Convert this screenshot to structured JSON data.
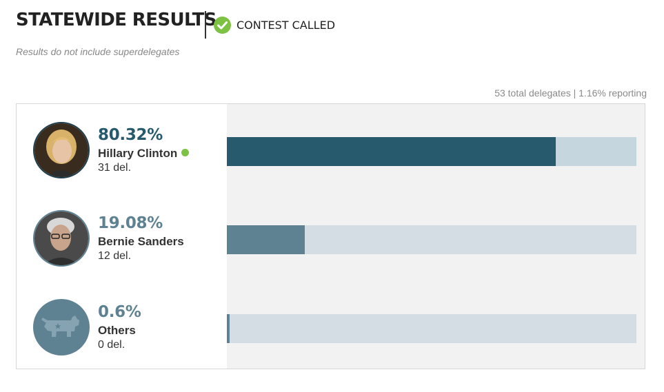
{
  "header": {
    "title": "STATEWIDE RESULTS",
    "status_label": "CONTEST CALLED",
    "status_icon": "check-circle-icon",
    "status_color": "#7dc243",
    "subtitle": "Results do not include superdelegates"
  },
  "summary": "53 total delegates | 1.16% reporting",
  "candidates": [
    {
      "name": "Hillary Clinton",
      "percent_label": "80.32%",
      "delegates_label": "31 del.",
      "winner": true,
      "color": "#265a6c",
      "track_color": "#c6d6de",
      "avatar_icon": "candidate-photo-icon"
    },
    {
      "name": "Bernie Sanders",
      "percent_label": "19.08%",
      "delegates_label": "12 del.",
      "winner": false,
      "color": "#5f8292",
      "track_color": "#d3dde3",
      "avatar_icon": "candidate-photo-icon"
    },
    {
      "name": "Others",
      "percent_label": "0.6%",
      "delegates_label": "0 del.",
      "winner": false,
      "color": "#5f8292",
      "track_color": "#d3dde3",
      "avatar_icon": "donkey-icon"
    }
  ],
  "chart_data": {
    "type": "bar",
    "orientation": "horizontal",
    "categories": [
      "Hillary Clinton",
      "Bernie Sanders",
      "Others"
    ],
    "values": [
      80.32,
      19.08,
      0.6
    ],
    "delegates": [
      31,
      12,
      0
    ],
    "xlim": [
      0,
      100
    ],
    "title": "STATEWIDE RESULTS",
    "grid": false
  }
}
